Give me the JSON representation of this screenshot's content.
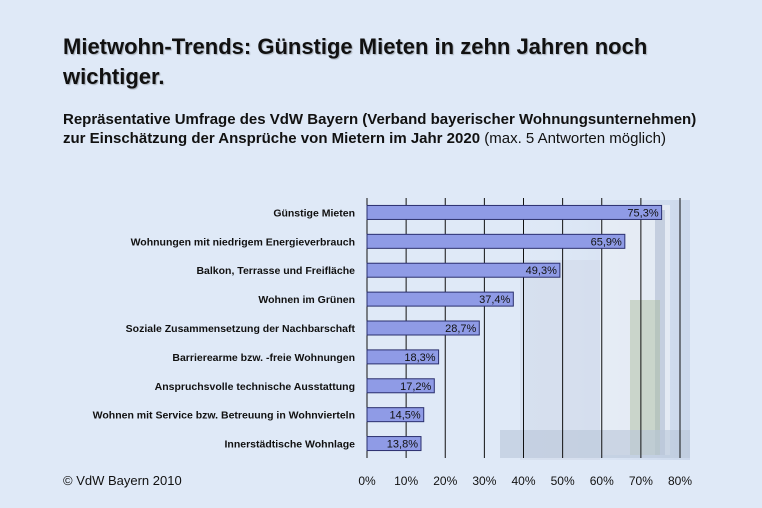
{
  "slide": {
    "title": "Mietwohn-Trends: Günstige Mieten in zehn Jahren noch wichtiger.",
    "subtitle_main": "Repräsentative Umfrage des VdW Bayern (Verband bayerischer Wohnungsunternehmen) zur Einschätzung der Ansprüche von Mietern im Jahr 2020",
    "subtitle_note": "(max. 5 Antworten möglich)",
    "copyright": "© VdW Bayern 2010"
  },
  "chart_data": {
    "type": "bar",
    "orientation": "horizontal",
    "categories": [
      "Günstige Mieten",
      "Wohnungen mit niedrigem Energieverbrauch",
      "Balkon, Terrasse und Freifläche",
      "Wohnen im Grünen",
      "Soziale Zusammensetzung der Nachbarschaft",
      "Barrierearme bzw. -freie Wohnungen",
      "Anspruchsvolle technische Ausstattung",
      "Wohnen mit Service bzw. Betreuung in Wohnvierteln",
      "Innerstädtische Wohnlage"
    ],
    "values": [
      75.3,
      65.9,
      49.3,
      37.4,
      28.7,
      18.3,
      17.2,
      14.5,
      13.8
    ],
    "value_labels": [
      "75,3%",
      "65,9%",
      "49,3%",
      "37,4%",
      "28,7%",
      "18,3%",
      "17,2%",
      "14,5%",
      "13,8%"
    ],
    "xlim": [
      0,
      80
    ],
    "xticks": [
      0,
      10,
      20,
      30,
      40,
      50,
      60,
      70,
      80
    ],
    "xtick_labels": [
      "0%",
      "10%",
      "20%",
      "30%",
      "40%",
      "50%",
      "60%",
      "70%",
      "80%"
    ],
    "grid": true,
    "bar_color": "#8f9be6",
    "bar_edge": "#2a2f6e"
  }
}
